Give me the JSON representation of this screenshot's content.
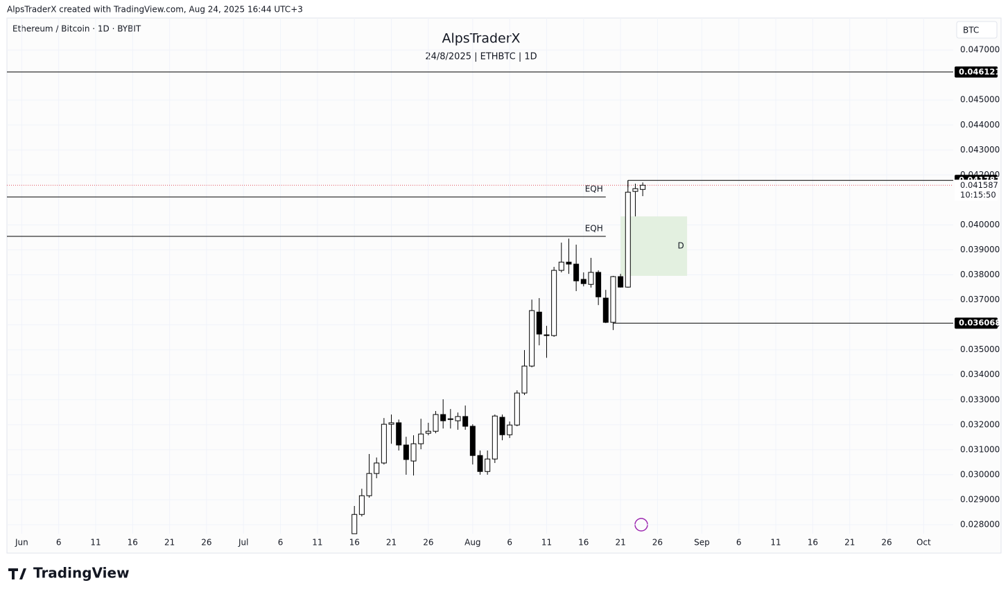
{
  "header": {
    "credit": "AlpsTraderX created with TradingView.com, Aug 24, 2025 16:44 UTC+3"
  },
  "footer": {
    "brand": "TradingView"
  },
  "chart_data": {
    "type": "candlestick",
    "title": "AlpsTraderX",
    "subtitle": "24/8/2025 | ETHBTC | 1D",
    "symbol": "Ethereum / Bitcoin · 1D · BYBIT",
    "currency": "BTC",
    "up_color": "#ffffff",
    "down_color": "#000000",
    "border_color": "#000000",
    "grid": true,
    "x": [
      "07-16",
      "07-17",
      "07-18",
      "07-19",
      "07-20",
      "07-21",
      "07-22",
      "07-23",
      "07-24",
      "07-25",
      "07-26",
      "07-27",
      "07-28",
      "07-29",
      "07-30",
      "07-31",
      "08-01",
      "08-02",
      "08-03",
      "08-04",
      "08-05",
      "08-06",
      "08-07",
      "08-08",
      "08-09",
      "08-10",
      "08-11",
      "08-12",
      "08-13",
      "08-14",
      "08-15",
      "08-16",
      "08-17",
      "08-18",
      "08-19",
      "08-20",
      "08-21",
      "08-22",
      "08-23",
      "08-24"
    ],
    "open": [
      0.02764,
      0.02841,
      0.02916,
      0.03005,
      0.03047,
      0.03202,
      0.03208,
      0.03119,
      0.03055,
      0.03124,
      0.03166,
      0.03174,
      0.03241,
      0.03221,
      0.03216,
      0.03233,
      0.03194,
      0.03077,
      0.03013,
      0.03063,
      0.0323,
      0.0316,
      0.03199,
      0.03327,
      0.03435,
      0.03651,
      0.0356,
      0.03557,
      0.03818,
      0.03851,
      0.03843,
      0.03782,
      0.03762,
      0.0381,
      0.03707,
      0.0361,
      0.03793,
      0.03751,
      0.04134,
      0.04142
    ],
    "high": [
      0.02875,
      0.02944,
      0.03083,
      0.03069,
      0.03227,
      0.03241,
      0.03221,
      0.03152,
      0.03158,
      0.03224,
      0.03208,
      0.03255,
      0.03302,
      0.03263,
      0.03249,
      0.03277,
      0.03202,
      0.03097,
      0.03097,
      0.03241,
      0.03241,
      0.03213,
      0.03338,
      0.03499,
      0.03701,
      0.03707,
      0.03596,
      0.03832,
      0.03929,
      0.03945,
      0.03921,
      0.0381,
      0.03868,
      0.03818,
      0.0374,
      0.03796,
      0.03804,
      0.041782,
      0.04165,
      0.0417
    ],
    "low": [
      0.02764,
      0.02833,
      0.02908,
      0.02986,
      0.03041,
      0.03124,
      0.03097,
      0.03,
      0.02997,
      0.03102,
      0.03158,
      0.03166,
      0.03185,
      0.03185,
      0.0318,
      0.0318,
      0.03041,
      0.03,
      0.03,
      0.03047,
      0.03138,
      0.03147,
      0.03194,
      0.03319,
      0.0343,
      0.03518,
      0.03468,
      0.03552,
      0.0381,
      0.03804,
      0.03735,
      0.03754,
      0.03749,
      0.03679,
      0.03607,
      0.036068,
      0.03749,
      0.03749,
      0.04034,
      0.04115
    ],
    "close": [
      0.02841,
      0.02916,
      0.03005,
      0.03047,
      0.03202,
      0.03208,
      0.03119,
      0.03061,
      0.03124,
      0.03163,
      0.03174,
      0.03241,
      0.03216,
      0.03224,
      0.03233,
      0.03194,
      0.03077,
      0.03013,
      0.03063,
      0.03235,
      0.0316,
      0.03199,
      0.03327,
      0.03435,
      0.03657,
      0.03563,
      0.03557,
      0.03818,
      0.03851,
      0.03843,
      0.03776,
      0.03765,
      0.0381,
      0.03712,
      0.0361,
      0.03793,
      0.03751,
      0.04131,
      0.04145,
      0.041587
    ],
    "xlim": [
      "05-30",
      "10-05"
    ],
    "xticks": [
      {
        "value": "06-01",
        "label": "Jun"
      },
      {
        "value": "06-06",
        "label": "6"
      },
      {
        "value": "06-11",
        "label": "11"
      },
      {
        "value": "06-16",
        "label": "16"
      },
      {
        "value": "06-21",
        "label": "21"
      },
      {
        "value": "06-26",
        "label": "26"
      },
      {
        "value": "07-01",
        "label": "Jul"
      },
      {
        "value": "07-06",
        "label": "6"
      },
      {
        "value": "07-11",
        "label": "11"
      },
      {
        "value": "07-16",
        "label": "16"
      },
      {
        "value": "07-21",
        "label": "21"
      },
      {
        "value": "07-26",
        "label": "26"
      },
      {
        "value": "08-01",
        "label": "Aug"
      },
      {
        "value": "08-06",
        "label": "6"
      },
      {
        "value": "08-11",
        "label": "11"
      },
      {
        "value": "08-16",
        "label": "16"
      },
      {
        "value": "08-21",
        "label": "21"
      },
      {
        "value": "08-26",
        "label": "26"
      },
      {
        "value": "09-01",
        "label": "Sep"
      },
      {
        "value": "09-06",
        "label": "6"
      },
      {
        "value": "09-11",
        "label": "11"
      },
      {
        "value": "09-16",
        "label": "16"
      },
      {
        "value": "09-21",
        "label": "21"
      },
      {
        "value": "09-26",
        "label": "26"
      },
      {
        "value": "10-01",
        "label": "Oct"
      }
    ],
    "ylim": [
      0.02764,
      0.04828
    ],
    "yticks": [
      {
        "value": 0.028,
        "label": "0.028000"
      },
      {
        "value": 0.029,
        "label": "0.029000"
      },
      {
        "value": 0.03,
        "label": "0.030000"
      },
      {
        "value": 0.031,
        "label": "0.031000"
      },
      {
        "value": 0.032,
        "label": "0.032000"
      },
      {
        "value": 0.033,
        "label": "0.033000"
      },
      {
        "value": 0.034,
        "label": "0.034000"
      },
      {
        "value": 0.035,
        "label": "0.035000"
      },
      {
        "value": 0.036,
        "label": "0.036000"
      },
      {
        "value": 0.037,
        "label": "0.037000"
      },
      {
        "value": 0.038,
        "label": "0.038000"
      },
      {
        "value": 0.039,
        "label": "0.039000"
      },
      {
        "value": 0.04,
        "label": "0.040000"
      },
      {
        "value": 0.042,
        "label": "0.042000"
      },
      {
        "value": 0.043,
        "label": "0.043000"
      },
      {
        "value": 0.044,
        "label": "0.044000"
      },
      {
        "value": 0.045,
        "label": "0.045000"
      },
      {
        "value": 0.047,
        "label": "0.047000"
      }
    ],
    "levels": [
      {
        "value": 0.046121
      },
      {
        "value": 0.041782,
        "start": "08-22"
      },
      {
        "value": 0.036068,
        "start": "08-20"
      }
    ],
    "eqh": [
      {
        "label": "EQH",
        "value": 0.04112,
        "end": "08-19"
      },
      {
        "label": "EQH",
        "value": 0.03954,
        "end": "08-19"
      }
    ],
    "zone": {
      "label": "D",
      "x": [
        "08-21",
        "08-30"
      ],
      "y": [
        0.03796,
        0.04034
      ],
      "color": "#e3f0e0"
    },
    "last_price": {
      "value": 0.041587,
      "countdown": "10:15:50",
      "color": "#e04c5a"
    }
  }
}
